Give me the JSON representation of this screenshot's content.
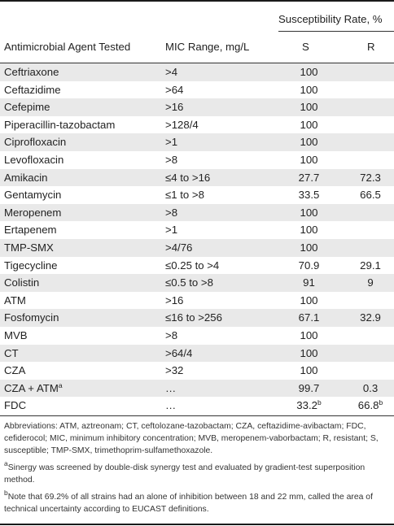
{
  "table": {
    "group_header": "Susceptibility Rate, %",
    "columns": {
      "agent": "Antimicrobial Agent Tested",
      "mic": "MIC Range, mg/L",
      "s": "S",
      "r": "R"
    },
    "rows": [
      {
        "agent": "Ceftriaxone",
        "mic": ">4",
        "s": "100",
        "r": "",
        "shaded": true
      },
      {
        "agent": "Ceftazidime",
        "mic": ">64",
        "s": "100",
        "r": "",
        "shaded": false
      },
      {
        "agent": "Cefepime",
        "mic": ">16",
        "s": "100",
        "r": "",
        "shaded": true
      },
      {
        "agent": "Piperacillin-tazobactam",
        "mic": ">128/4",
        "s": "100",
        "r": "",
        "shaded": false
      },
      {
        "agent": "Ciprofloxacin",
        "mic": ">1",
        "s": "100",
        "r": "",
        "shaded": true
      },
      {
        "agent": "Levofloxacin",
        "mic": ">8",
        "s": "100",
        "r": "",
        "shaded": false
      },
      {
        "agent": "Amikacin",
        "mic": "≤4 to >16",
        "s": "27.7",
        "r": "72.3",
        "shaded": true
      },
      {
        "agent": "Gentamycin",
        "mic": "≤1 to >8",
        "s": "33.5",
        "r": "66.5",
        "shaded": false
      },
      {
        "agent": "Meropenem",
        "mic": ">8",
        "s": "100",
        "r": "",
        "shaded": true
      },
      {
        "agent": "Ertapenem",
        "mic": ">1",
        "s": "100",
        "r": "",
        "shaded": false
      },
      {
        "agent": "TMP-SMX",
        "mic": ">4/76",
        "s": "100",
        "r": "",
        "shaded": true
      },
      {
        "agent": "Tigecycline",
        "mic": "≤0.25 to >4",
        "s": "70.9",
        "r": "29.1",
        "shaded": false
      },
      {
        "agent": "Colistin",
        "mic": "≤0.5 to >8",
        "s": "91",
        "r": "9",
        "shaded": true
      },
      {
        "agent": "ATM",
        "mic": ">16",
        "s": "100",
        "r": "",
        "shaded": false
      },
      {
        "agent": "Fosfomycin",
        "mic": "≤16 to >256",
        "s": "67.1",
        "r": "32.9",
        "shaded": true
      },
      {
        "agent": "MVB",
        "mic": ">8",
        "s": "100",
        "r": "",
        "shaded": false
      },
      {
        "agent": "CT",
        "mic": ">64/4",
        "s": "100",
        "r": "",
        "shaded": true
      },
      {
        "agent": "CZA",
        "mic": ">32",
        "s": "100",
        "r": "",
        "shaded": false
      },
      {
        "agent": "CZA + ATM",
        "agent_sup": "a",
        "mic": "…",
        "s": "99.7",
        "r": "0.3",
        "shaded": true
      },
      {
        "agent": "FDC",
        "mic": "…",
        "s": "33.2",
        "s_sup": "b",
        "r": "66.8",
        "r_sup": "b",
        "shaded": false
      }
    ]
  },
  "notes": {
    "abbreviations": "Abbreviations: ATM, aztreonam; CT, ceftolozane-tazobactam; CZA, ceftazidime-avibactam; FDC, cefiderocol; MIC, minimum inhibitory concentration; MVB, meropenem-vaborbactam; R, resistant; S, susceptible; TMP-SMX, trimethoprim-sulfamethoxazole.",
    "footnote_a_mark": "a",
    "footnote_a": "Sinergy was screened by double-disk synergy test and evaluated by gradient-test superposition method.",
    "footnote_b_mark": "b",
    "footnote_b": "Note that 69.2% of all strains had an alone of inhibition between 18 and 22 mm, called the area of technical uncertainty according to EUCAST definitions."
  }
}
